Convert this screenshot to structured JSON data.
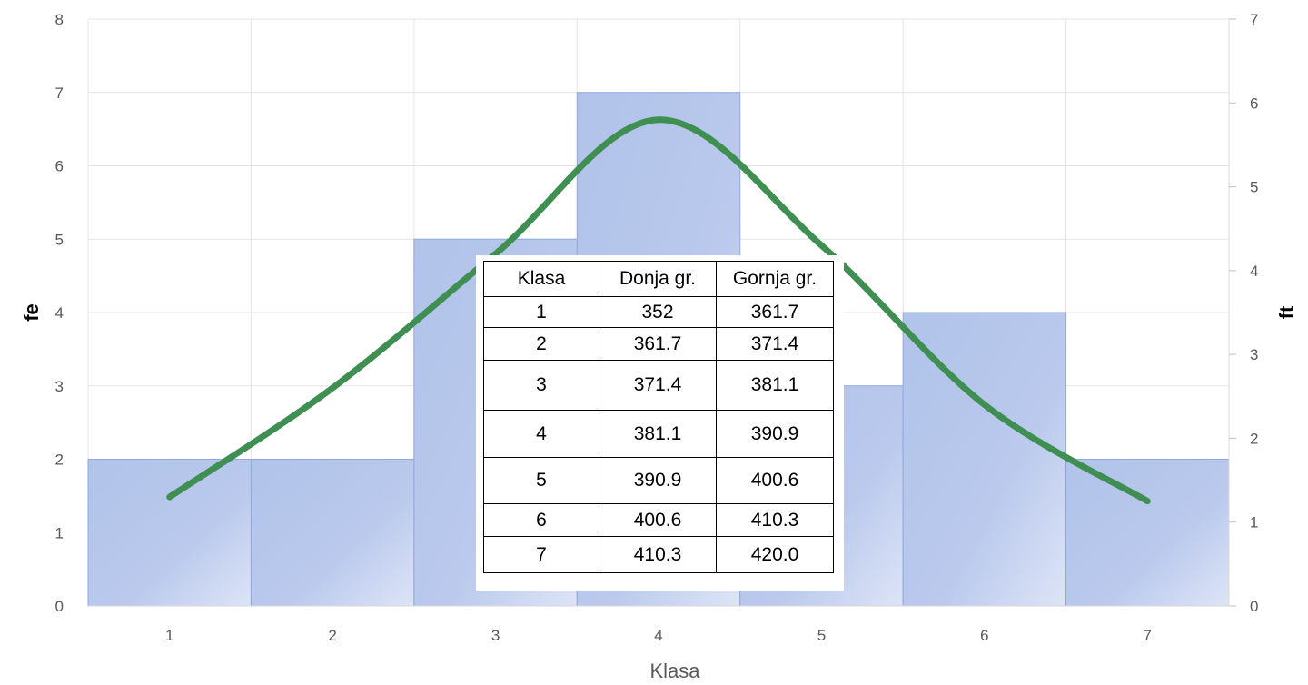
{
  "chart_data": {
    "type": "bar",
    "categories": [
      "1",
      "2",
      "3",
      "4",
      "5",
      "6",
      "7"
    ],
    "series": [
      {
        "values": [
          2,
          2,
          5,
          7,
          3,
          4,
          2
        ],
        "axis": "left",
        "kind": "bar"
      },
      {
        "values": [
          1.3,
          2.6,
          4.2,
          5.8,
          4.3,
          2.4,
          1.25
        ],
        "axis": "right",
        "kind": "line"
      }
    ],
    "xlabel": "Klasa",
    "ylabel_left": "fe",
    "ylabel_right": "ft",
    "ylim_left": [
      0,
      8
    ],
    "ylim_right": [
      0,
      7
    ],
    "yticks_left": [
      "0",
      "1",
      "2",
      "3",
      "4",
      "5",
      "6",
      "7",
      "8"
    ],
    "yticks_right": [
      "0",
      "1",
      "2",
      "3",
      "4",
      "5",
      "6",
      "7"
    ],
    "grid": true,
    "colors": {
      "bar_fill": "#b4c5ea",
      "bar_edge": "#8fa9e0",
      "line": "#3f8f52",
      "grid": "#e4e4e4",
      "tick_text": "#595959"
    }
  },
  "table": {
    "headers": [
      "Klasa",
      "Donja gr.",
      "Gornja gr."
    ],
    "rows": [
      [
        "1",
        "352",
        "361.7"
      ],
      [
        "2",
        "361.7",
        "371.4"
      ],
      [
        "3",
        "371.4",
        "381.1"
      ],
      [
        "4",
        "381.1",
        "390.9"
      ],
      [
        "5",
        "390.9",
        "400.6"
      ],
      [
        "6",
        "400.6",
        "410.3"
      ],
      [
        "7",
        "410.3",
        "420.0"
      ]
    ]
  }
}
